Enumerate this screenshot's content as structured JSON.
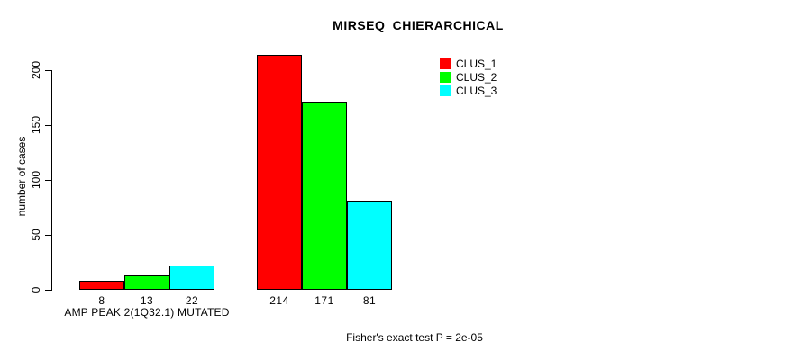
{
  "chart_data": {
    "type": "bar",
    "title": "MIRSEQ_CHIERARCHICAL",
    "ylabel": "number of cases",
    "xlabel": "",
    "ylim": [
      0,
      200
    ],
    "yticks": [
      0,
      50,
      100,
      150,
      200
    ],
    "grid": false,
    "background": "#ffffff",
    "bar_border_color": "#000000",
    "categories": [
      "AMP PEAK 2(1Q32.1) MUTATED",
      ""
    ],
    "series": [
      {
        "name": "CLUS_1",
        "color": "#ff0000",
        "values": [
          8,
          214
        ]
      },
      {
        "name": "CLUS_2",
        "color": "#00ff00",
        "values": [
          13,
          171
        ]
      },
      {
        "name": "CLUS_3",
        "color": "#00ffff",
        "values": [
          22,
          81
        ]
      }
    ],
    "bar_value_labels": [
      [
        8,
        13,
        22
      ],
      [
        214,
        171,
        81
      ]
    ],
    "legend": {
      "position": "top-right",
      "entries": [
        "CLUS_1",
        "CLUS_2",
        "CLUS_3"
      ]
    },
    "footnote": "Fisher's exact test P = 2e-05"
  }
}
